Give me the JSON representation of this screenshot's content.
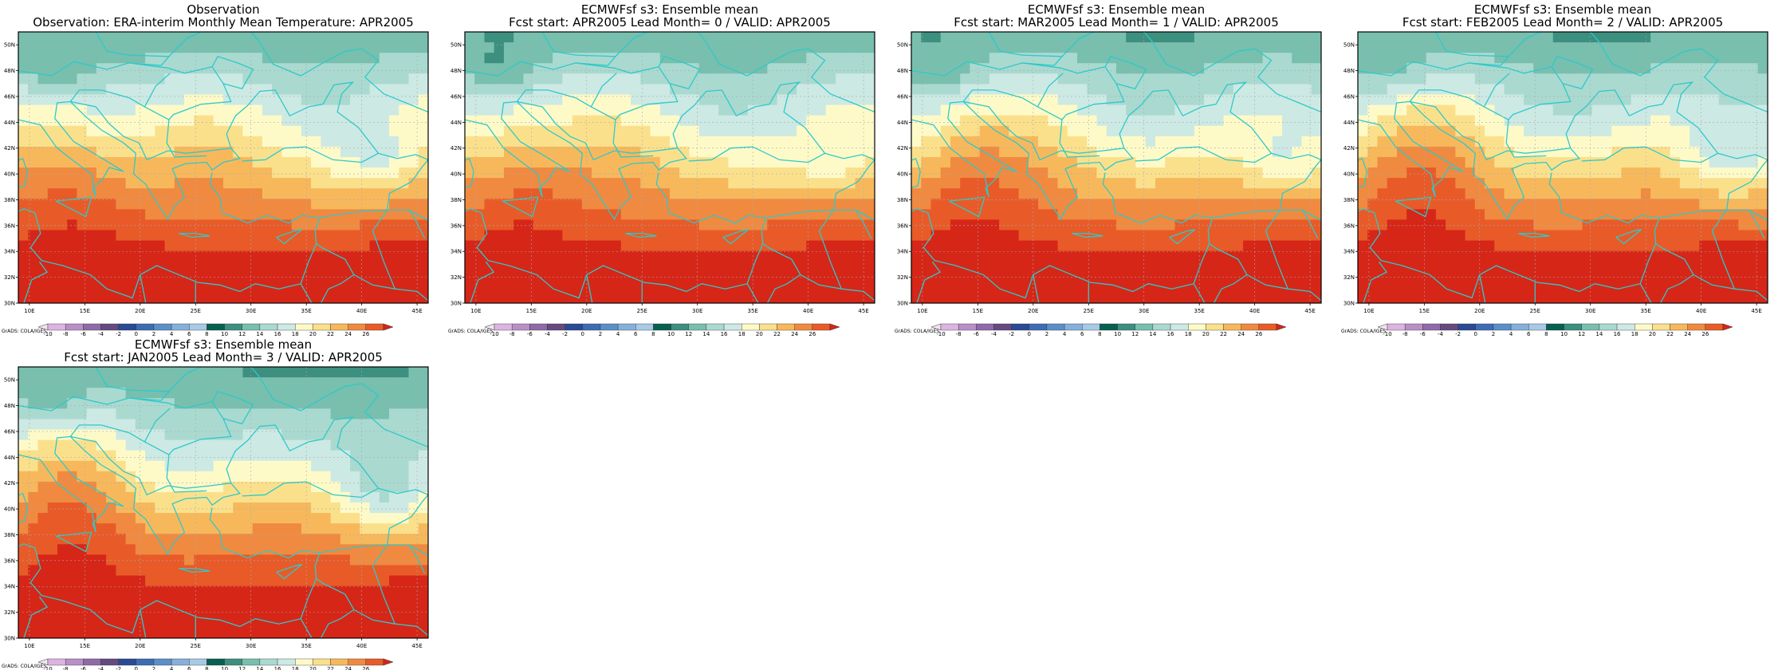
{
  "panels": [
    {
      "title1": "Observation",
      "title2": "Observation: ERA-interim Monthly Mean Temperature: APR2005",
      "footnote": "GrADS: COLA/IGES"
    },
    {
      "title1": "ECMWFsf s3: Ensemble mean",
      "title2": "Fcst start: APR2005  Lead Month= 0 / VALID: APR2005",
      "footnote": "GrADS: COLA/IGES"
    },
    {
      "title1": "ECMWFsf s3: Ensemble mean",
      "title2": "Fcst start: MAR2005  Lead Month= 1 / VALID: APR2005",
      "footnote": "GrADS: COLA/IGES"
    },
    {
      "title1": "ECMWFsf s3: Ensemble mean",
      "title2": "Fcst start: FEB2005  Lead Month= 2 / VALID: APR2005",
      "footnote": "GrADS: COLA/IGES"
    },
    {
      "title1": "ECMWFsf s3: Ensemble mean",
      "title2": "Fcst start: JAN2005  Lead Month= 3 / VALID: APR2005",
      "footnote": "GrADS: COLA/IGES"
    }
  ],
  "lon_ticks": [
    "10E",
    "15E",
    "20E",
    "25E",
    "30E",
    "35E",
    "40E",
    "45E"
  ],
  "lat_ticks": [
    "30N",
    "32N",
    "34N",
    "36N",
    "38N",
    "40N",
    "42N",
    "44N",
    "46N",
    "48N",
    "50N"
  ],
  "lon_range": [
    9,
    46
  ],
  "lat_range": [
    30,
    51
  ],
  "colorbar": {
    "labels": [
      "-10",
      "-8",
      "-6",
      "-4",
      "-2",
      "0",
      "2",
      "4",
      "6",
      "8",
      "10",
      "12",
      "14",
      "16",
      "18",
      "20",
      "22",
      "24",
      "26"
    ],
    "colors": [
      "#f2e4f2",
      "#dcb4e0",
      "#b98fc8",
      "#8e6aa8",
      "#654a80",
      "#2a4a95",
      "#3e6cb4",
      "#5b8fc7",
      "#84b0da",
      "#a8c9e6",
      "#066050",
      "#3d8f7f",
      "#78bfae",
      "#aad9d0",
      "#cde9e4",
      "#fefac8",
      "#fbe08c",
      "#f7b85c",
      "#f08a40",
      "#e85b28",
      "#d62618"
    ]
  },
  "contour_colors": [
    "#84b0da",
    "#a8c9e6",
    "#066050",
    "#3d8f7f",
    "#78bfae",
    "#aad9d0",
    "#cde9e4",
    "#fefac8",
    "#fbe08c",
    "#f7b85c",
    "#f08a40",
    "#e85b28",
    "#d62618"
  ],
  "coast_color": "#2ec9c9",
  "grid_color": "#aaaaaa"
}
